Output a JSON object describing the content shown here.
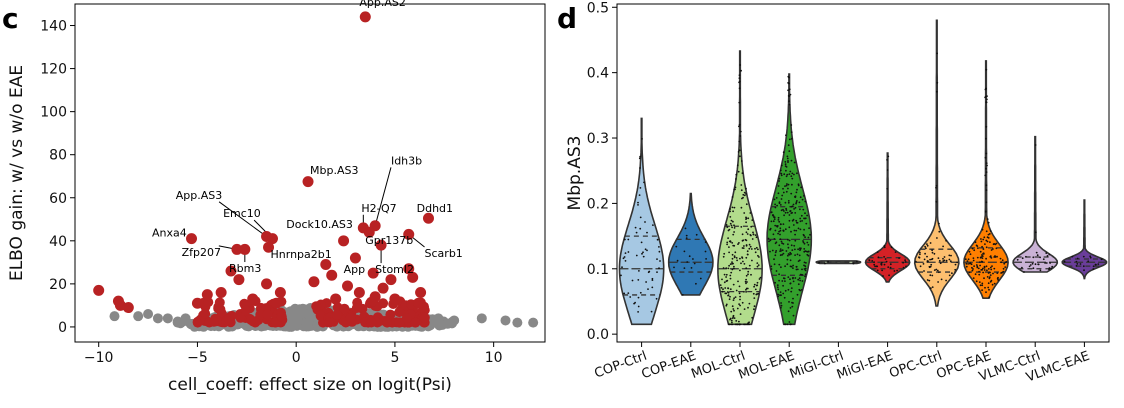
{
  "chart_data": [
    {
      "panel": "c",
      "type": "scatter",
      "xlabel": "cell_coeff: effect size on logit(Psi)",
      "ylabel": "ELBO gain: w/ vs w/o EAE",
      "xlim": [
        -11.2,
        12.6
      ],
      "ylim": [
        -7,
        150
      ],
      "xticks": [
        -10,
        -5,
        0,
        5,
        10
      ],
      "yticks": [
        0,
        20,
        40,
        60,
        80,
        100,
        120,
        140
      ],
      "colors": {
        "significant": "#b82223",
        "background": "#888888"
      },
      "significant_points": [
        {
          "x": 3.5,
          "y": 144,
          "label": "App.AS2"
        },
        {
          "x": 0.6,
          "y": 67.5,
          "label": "Mbp.AS3"
        },
        {
          "x": 6.7,
          "y": 50.5,
          "label": "Ddhd1"
        },
        {
          "x": 3.4,
          "y": 46,
          "label": "H2-Q7"
        },
        {
          "x": 4.0,
          "y": 47,
          "label": "Idh3b"
        },
        {
          "x": 3.7,
          "y": 44,
          "label": "Gpr137b"
        },
        {
          "x": 5.7,
          "y": 43,
          "label": "Scarb1"
        },
        {
          "x": 2.4,
          "y": 40,
          "label": "Dock10.AS3"
        },
        {
          "x": -5.3,
          "y": 41,
          "label": "Anxa4"
        },
        {
          "x": -1.5,
          "y": 42,
          "label": "App.AS3"
        },
        {
          "x": -1.2,
          "y": 41,
          "label": "Emc10"
        },
        {
          "x": -1.4,
          "y": 37,
          "label": "Hnrnpa2b1"
        },
        {
          "x": -3.0,
          "y": 36,
          "label": "Zfp207"
        },
        {
          "x": -2.6,
          "y": 36,
          "label": "Rbm3"
        },
        {
          "x": 4.3,
          "y": 38,
          "label": "Stoml2"
        },
        {
          "x": 3.0,
          "y": 32,
          "label": "App"
        },
        {
          "x": -10.0,
          "y": 17
        },
        {
          "x": -9.0,
          "y": 12
        },
        {
          "x": -8.9,
          "y": 10
        },
        {
          "x": -8.5,
          "y": 9
        },
        {
          "x": 5.7,
          "y": 27
        },
        {
          "x": 5.9,
          "y": 23
        },
        {
          "x": 6.2,
          "y": 11
        },
        {
          "x": 4.8,
          "y": 22
        },
        {
          "x": 1.5,
          "y": 29
        },
        {
          "x": 1.8,
          "y": 24
        },
        {
          "x": 0.9,
          "y": 21
        },
        {
          "x": -2.9,
          "y": 22
        },
        {
          "x": -3.3,
          "y": 26
        },
        {
          "x": -3.8,
          "y": 16
        },
        {
          "x": -4.5,
          "y": 15
        },
        {
          "x": -1.5,
          "y": 20
        },
        {
          "x": -0.8,
          "y": 16
        },
        {
          "x": -2.2,
          "y": 13
        },
        {
          "x": 2.6,
          "y": 19
        },
        {
          "x": 3.2,
          "y": 16
        },
        {
          "x": 4.0,
          "y": 14
        },
        {
          "x": 5.0,
          "y": 13
        },
        {
          "x": 6.3,
          "y": 16
        },
        {
          "x": 2.0,
          "y": 13
        },
        {
          "x": -1.0,
          "y": 11
        },
        {
          "x": -5.0,
          "y": 11
        },
        {
          "x": 3.9,
          "y": 25
        },
        {
          "x": 4.4,
          "y": 18
        }
      ],
      "background_points": [
        {
          "x": -8.0,
          "y": 5
        },
        {
          "x": -7.5,
          "y": 6
        },
        {
          "x": -7.0,
          "y": 4
        },
        {
          "x": -6.5,
          "y": 4
        },
        {
          "x": -9.2,
          "y": 5
        },
        {
          "x": 9.4,
          "y": 4
        },
        {
          "x": 10.6,
          "y": 3
        },
        {
          "x": 11.2,
          "y": 2
        },
        {
          "x": 12.0,
          "y": 2
        },
        {
          "x": 8.0,
          "y": 3
        },
        {
          "x": 7.2,
          "y": 4
        },
        {
          "x": 6.8,
          "y": 2
        },
        {
          "x": -4.8,
          "y": 3
        },
        {
          "x": -4.2,
          "y": 2
        },
        {
          "x": -5.6,
          "y": 4
        },
        {
          "x": -6.0,
          "y": 2
        }
      ],
      "background_band": {
        "x_range": [
          -6.5,
          8.5
        ],
        "y_range": [
          0,
          7
        ]
      },
      "annotations": [
        {
          "label": "App.AS2",
          "text_x": 3.2,
          "text_y": 149
        },
        {
          "label": "Mbp.AS3",
          "text_x": 0.7,
          "text_y": 71
        },
        {
          "label": "Idh3b",
          "text_x": 4.8,
          "text_y": 75.5
        },
        {
          "label": "Ddhd1",
          "text_x": 6.1,
          "text_y": 53.5
        },
        {
          "label": "H2-Q7",
          "text_x": 3.3,
          "text_y": 53.5
        },
        {
          "label": "Dock10.AS3",
          "text_x": -0.5,
          "text_y": 46
        },
        {
          "label": "Gpr137b",
          "text_x": 3.5,
          "text_y": 38.5
        },
        {
          "label": "Scarb1",
          "text_x": 6.5,
          "text_y": 32.5
        },
        {
          "label": "Stoml2",
          "text_x": 4.0,
          "text_y": 25
        },
        {
          "label": "App",
          "text_x": 2.4,
          "text_y": 25
        },
        {
          "label": "App.AS3",
          "text_x": -6.1,
          "text_y": 59.5
        },
        {
          "label": "Emc10",
          "text_x": -3.7,
          "text_y": 51
        },
        {
          "label": "Anxa4",
          "text_x": -7.3,
          "text_y": 42
        },
        {
          "label": "Hnrnpa2b1",
          "text_x": -1.3,
          "text_y": 32
        },
        {
          "label": "Zfp207",
          "text_x": -5.8,
          "text_y": 33
        },
        {
          "label": "Rbm3",
          "text_x": -3.4,
          "text_y": 25.5
        }
      ]
    },
    {
      "panel": "d",
      "type": "violin",
      "ylabel": "Mbp.AS3",
      "ylim": [
        -0.012,
        0.505
      ],
      "yticks": [
        0.0,
        0.1,
        0.2,
        0.3,
        0.4,
        0.5
      ],
      "categories": [
        "COP-Ctrl",
        "COP-EAE",
        "MOL-Ctrl",
        "MOL-EAE",
        "MiGl-Ctrl",
        "MiGl-EAE",
        "OPC-Ctrl",
        "OPC-EAE",
        "VLMC-Ctrl",
        "VLMC-EAE"
      ],
      "colors": [
        "#a6c8e3",
        "#2f78b4",
        "#b2dc8c",
        "#33a02c",
        "#cce6b8",
        "#d42126",
        "#fdbf6f",
        "#ff7f00",
        "#cab2d6",
        "#6a3d9a"
      ],
      "series": [
        {
          "name": "COP-Ctrl",
          "min": 0.015,
          "max": 0.33,
          "q1": 0.06,
          "median": 0.1,
          "q3": 0.15
        },
        {
          "name": "COP-EAE",
          "min": 0.06,
          "max": 0.215,
          "q1": 0.095,
          "median": 0.11,
          "q3": 0.145
        },
        {
          "name": "MOL-Ctrl",
          "min": 0.015,
          "max": 0.433,
          "q1": 0.065,
          "median": 0.1,
          "q3": 0.165
        },
        {
          "name": "MOL-EAE",
          "min": 0.015,
          "max": 0.398,
          "q1": 0.09,
          "median": 0.145,
          "q3": 0.195
        },
        {
          "name": "MiGl-Ctrl",
          "min": 0.108,
          "max": 0.112,
          "q1": 0.109,
          "median": 0.11,
          "q3": 0.111
        },
        {
          "name": "MiGl-EAE",
          "min": 0.08,
          "max": 0.277,
          "q1": 0.1,
          "median": 0.11,
          "q3": 0.117
        },
        {
          "name": "OPC-Ctrl",
          "min": 0.043,
          "max": 0.48,
          "q1": 0.095,
          "median": 0.11,
          "q3": 0.13
        },
        {
          "name": "OPC-EAE",
          "min": 0.055,
          "max": 0.418,
          "q1": 0.095,
          "median": 0.11,
          "q3": 0.132
        },
        {
          "name": "VLMC-Ctrl",
          "min": 0.095,
          "max": 0.302,
          "q1": 0.1,
          "median": 0.11,
          "q3": 0.118
        },
        {
          "name": "VLMC-EAE",
          "min": 0.085,
          "max": 0.205,
          "q1": 0.104,
          "median": 0.11,
          "q3": 0.115
        }
      ]
    }
  ]
}
